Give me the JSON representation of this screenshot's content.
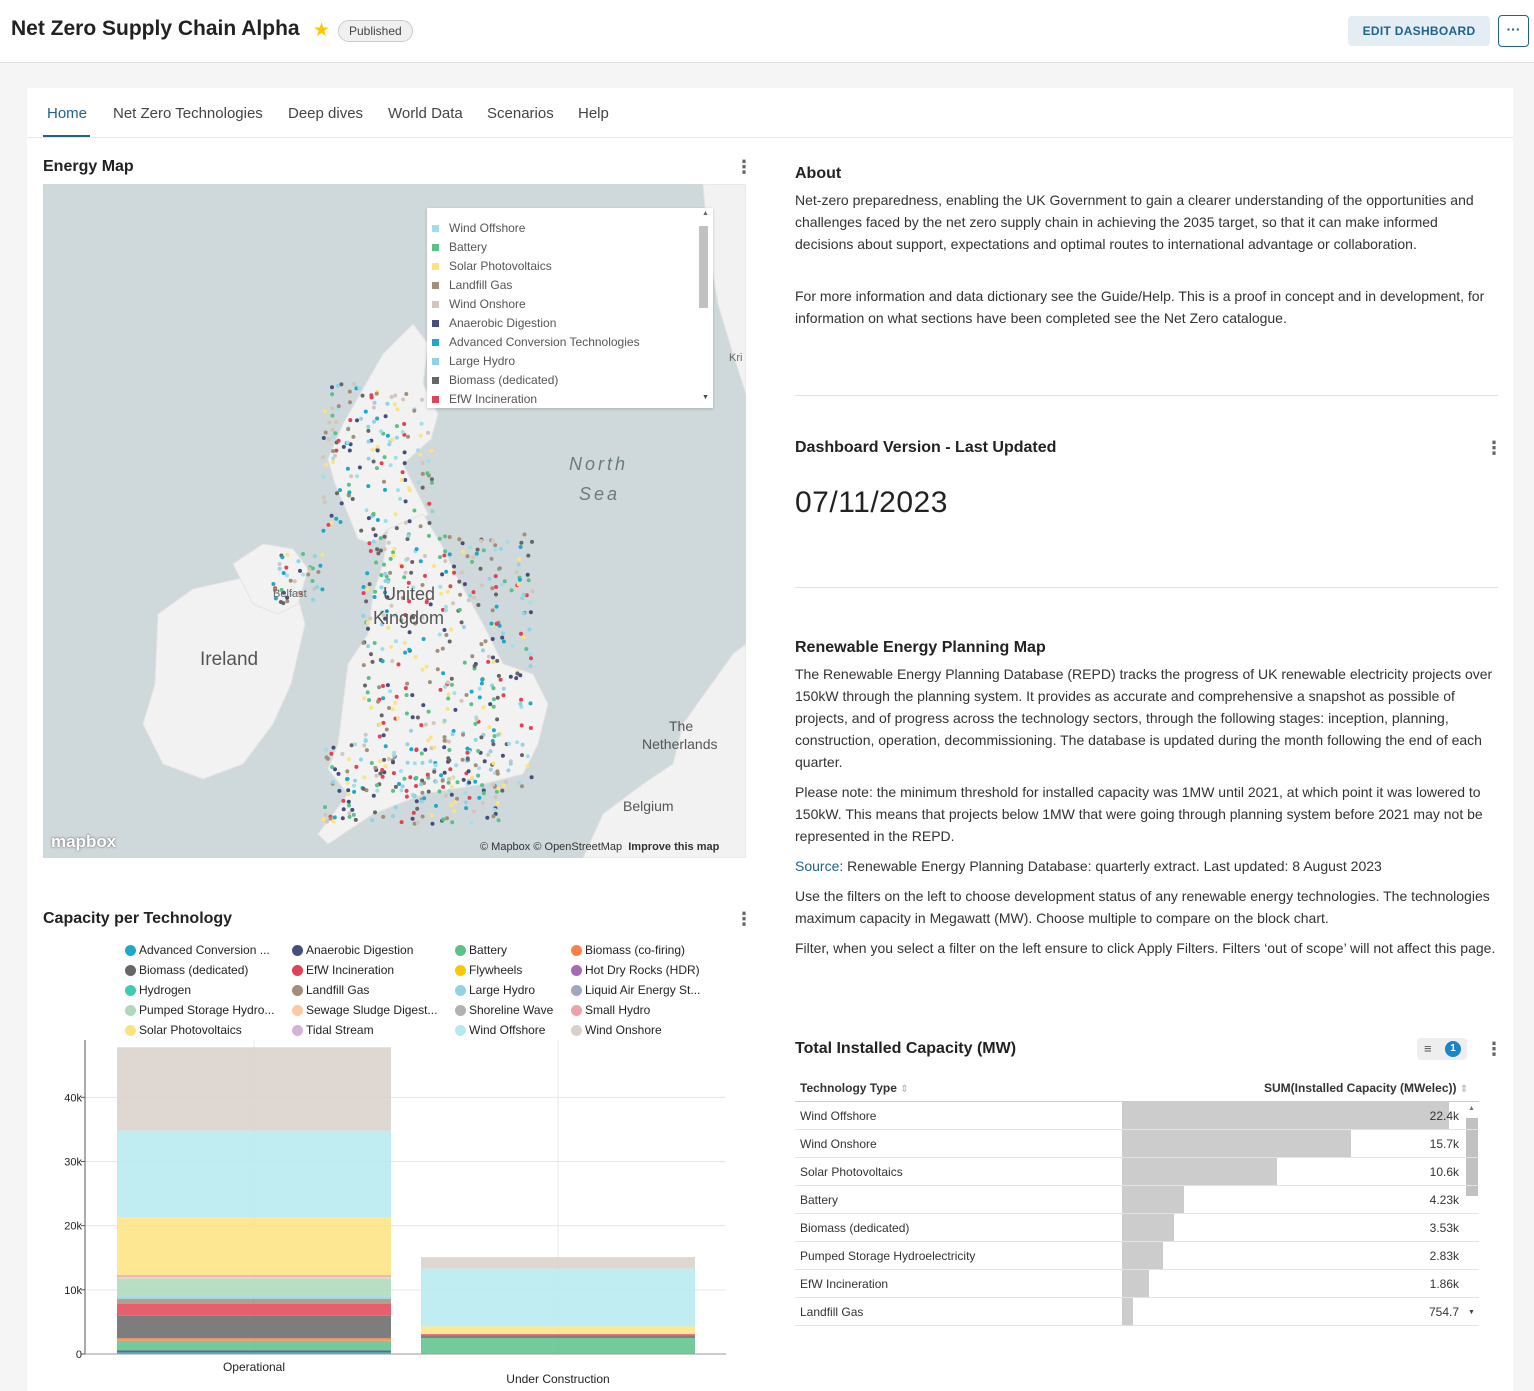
{
  "header": {
    "title": "Net Zero Supply Chain Alpha",
    "status": "Published",
    "edit_label": "EDIT DASHBOARD",
    "more_label": "···"
  },
  "tabs": [
    {
      "label": "Home"
    },
    {
      "label": "Net Zero Technologies"
    },
    {
      "label": "Deep dives"
    },
    {
      "label": "World Data"
    },
    {
      "label": "Scenarios"
    },
    {
      "label": "Help"
    }
  ],
  "energy_map": {
    "title": "Energy Map",
    "legend": [
      {
        "label": "Wind Offshore",
        "color": "#9fe0e8"
      },
      {
        "label": "Battery",
        "color": "#5ac189"
      },
      {
        "label": "Solar Photovoltaics",
        "color": "#fde380"
      },
      {
        "label": "Landfill Gas",
        "color": "#a38f79"
      },
      {
        "label": "Wind Onshore",
        "color": "#d3c5bc"
      },
      {
        "label": "Anaerobic Digestion",
        "color": "#454e7c"
      },
      {
        "label": "Advanced Conversion Technologies",
        "color": "#1fa8c9"
      },
      {
        "label": "Large Hydro",
        "color": "#8fd3e4"
      },
      {
        "label": "Biomass (dedicated)",
        "color": "#666666"
      },
      {
        "label": "EfW Incineration",
        "color": "#e04355"
      }
    ],
    "labels": {
      "north_sea_1": "North",
      "north_sea_2": "Sea",
      "ireland": "Ireland",
      "uk_1": "United",
      "uk_2": "Kingdom",
      "netherlands_1": "The",
      "netherlands_2": "Netherlands",
      "belgium": "Belgium",
      "belfast": "Belfast",
      "kr": "Kri"
    },
    "logo": "mapbox",
    "attribution": "© Mapbox © OpenStreetMap",
    "improve": "Improve this map"
  },
  "capacity_chart": {
    "title": "Capacity per Technology"
  },
  "chart_data": {
    "type": "bar",
    "stacked": true,
    "categories": [
      "Operational",
      "Under Construction"
    ],
    "ylim": [
      0,
      48000
    ],
    "yticks": [
      0,
      10000,
      20000,
      30000,
      40000
    ],
    "ytick_labels": [
      "0",
      "10k",
      "20k",
      "30k",
      "40k"
    ],
    "series": [
      {
        "name": "Advanced Conversion ...",
        "color": "#1fa8c9",
        "values": [
          250,
          0
        ]
      },
      {
        "name": "Anaerobic Digestion",
        "color": "#454e7c",
        "values": [
          300,
          0
        ]
      },
      {
        "name": "Battery",
        "color": "#5ac189",
        "values": [
          1500,
          2500
        ]
      },
      {
        "name": "Biomass (co-firing)",
        "color": "#ff7f44",
        "values": [
          400,
          0
        ]
      },
      {
        "name": "Biomass (dedicated)",
        "color": "#666666",
        "values": [
          3500,
          300
        ]
      },
      {
        "name": "EfW Incineration",
        "color": "#e04355",
        "values": [
          1900,
          300
        ]
      },
      {
        "name": "Flywheels",
        "color": "#fcc700",
        "values": [
          0,
          0
        ]
      },
      {
        "name": "Hot Dry Rocks (HDR)",
        "color": "#a868b7",
        "values": [
          0,
          0
        ]
      },
      {
        "name": "Hydrogen",
        "color": "#3cccb4",
        "values": [
          0,
          0
        ]
      },
      {
        "name": "Landfill Gas",
        "color": "#a38f79",
        "values": [
          750,
          0
        ]
      },
      {
        "name": "Large Hydro",
        "color": "#8fd3e4",
        "values": [
          400,
          0
        ]
      },
      {
        "name": "Liquid Air Energy St...",
        "color": "#a1a6bd",
        "values": [
          0,
          0
        ]
      },
      {
        "name": "Pumped Storage Hydro...",
        "color": "#acd9b8",
        "values": [
          2800,
          0
        ]
      },
      {
        "name": "Sewage Sludge Digest...",
        "color": "#fdc9a5",
        "values": [
          200,
          0
        ]
      },
      {
        "name": "Shoreline Wave",
        "color": "#b2b2b2",
        "values": [
          0,
          0
        ]
      },
      {
        "name": "Small Hydro",
        "color": "#efa1aa",
        "values": [
          300,
          0
        ]
      },
      {
        "name": "Solar Photovoltaics",
        "color": "#fde380",
        "values": [
          9000,
          1200
        ]
      },
      {
        "name": "Tidal Stream",
        "color": "#d3b3da",
        "values": [
          0,
          0
        ]
      },
      {
        "name": "Wind Offshore",
        "color": "#b4eaee",
        "values": [
          13500,
          9000
        ]
      },
      {
        "name": "Wind Onshore",
        "color": "#d9d0ca",
        "values": [
          13000,
          1800
        ]
      }
    ]
  },
  "about": {
    "title": "About",
    "p1": "Net-zero preparedness, enabling the UK Government to gain a clearer understanding of the opportunities and challenges faced by the net zero supply chain in achieving the 2035 target, so that it can make informed decisions about support, expectations and optimal routes to international advantage or collaboration.",
    "p2": "For more information and data dictionary see the Guide/Help. This is a proof in concept and in development, for information on what sections have been completed see the Net Zero catalogue."
  },
  "version": {
    "title": "Dashboard Version - Last Updated",
    "date": "07/11/2023"
  },
  "repd": {
    "title": "Renewable Energy Planning Map",
    "p1": "The Renewable Energy Planning Database (REPD) tracks the progress of UK renewable electricity projects over 150kW through the planning system. It provides as accurate and comprehensive a snapshot as possible of projects, and of progress across the technology sectors, through the following stages: inception, planning, construction, operation, decommissioning. The database is updated during the month following the end of each quarter.",
    "p2": "Please note: the minimum threshold for installed capacity was 1MW until 2021, at which point it was lowered to 150kW. This means that projects below 1MW that were going through planning system before 2021 may not be represented in the REPD.",
    "source_link": "Source",
    "source_text": ": Renewable Energy Planning Database: quarterly extract. Last updated: 8 August 2023",
    "p4": "Use the filters on the left to choose development status of any renewable energy technologies. The technologies maximum capacity in Megawatt (MW). Choose multiple to compare on the block chart.",
    "p5": "Filter, when you select a filter on the left ensure to click Apply Filters. Filters ‘out of scope’ will not affect this page."
  },
  "total_table": {
    "title": "Total Installed Capacity (MW)",
    "filter_count": "1",
    "col1": "Technology Type",
    "col2": "SUM(Installed Capacity (MWelec))",
    "rows": [
      {
        "name": "Wind Offshore",
        "value": "22.4k",
        "num": 22400
      },
      {
        "name": "Wind Onshore",
        "value": "15.7k",
        "num": 15700
      },
      {
        "name": "Solar Photovoltaics",
        "value": "10.6k",
        "num": 10600
      },
      {
        "name": "Battery",
        "value": "4.23k",
        "num": 4230
      },
      {
        "name": "Biomass (dedicated)",
        "value": "3.53k",
        "num": 3530
      },
      {
        "name": "Pumped Storage Hydroelectricity",
        "value": "2.83k",
        "num": 2830
      },
      {
        "name": "EfW Incineration",
        "value": "1.86k",
        "num": 1860
      },
      {
        "name": "Landfill Gas",
        "value": "754.7",
        "num": 754.7
      }
    ]
  }
}
